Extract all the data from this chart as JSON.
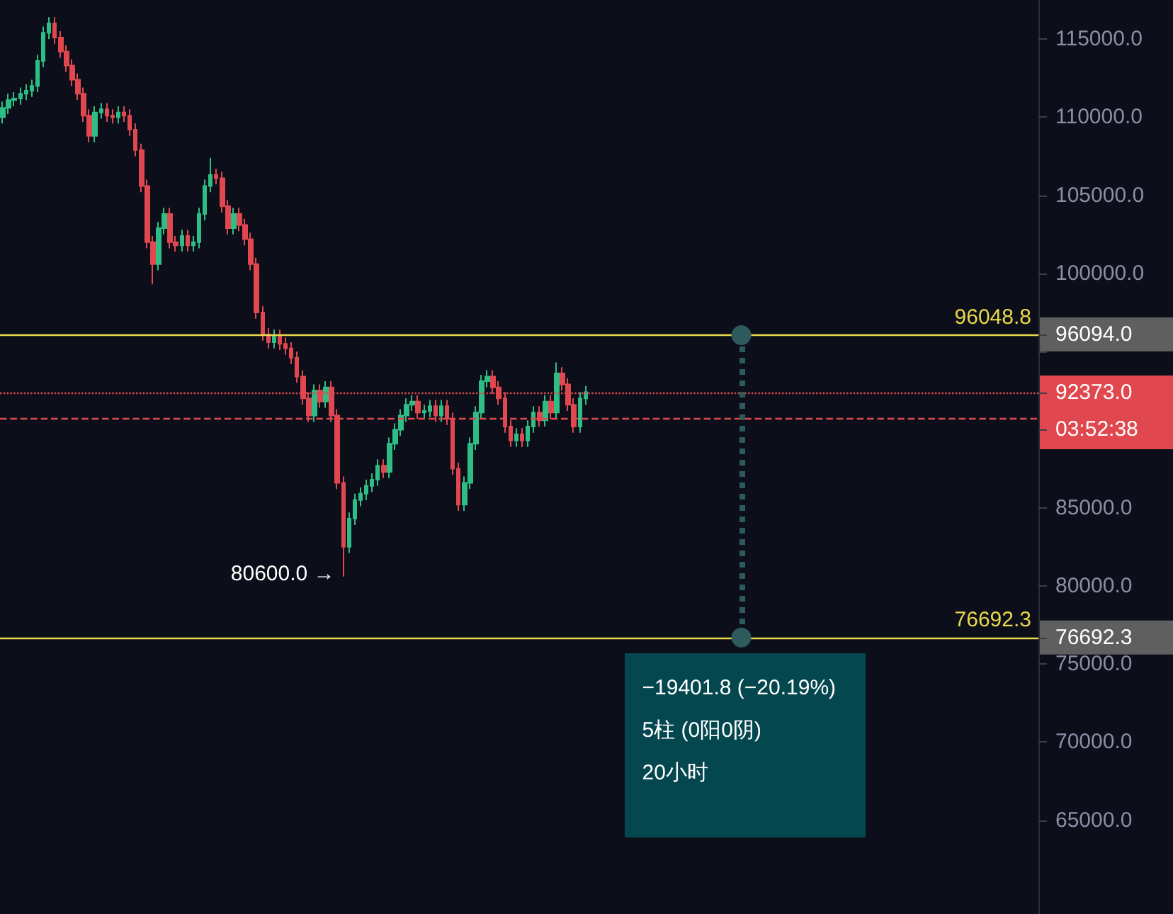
{
  "chart_data": {
    "type": "candlestick",
    "categories": [
      null,
      null,
      null,
      null,
      null,
      null,
      null,
      null,
      null,
      null,
      null,
      null,
      null,
      null,
      null,
      null,
      null,
      null,
      null,
      null,
      null,
      null,
      null,
      null,
      null,
      null,
      null,
      null,
      null,
      null,
      null,
      null,
      null,
      null,
      null,
      null,
      null,
      null,
      null,
      null,
      null,
      null,
      null,
      null,
      null,
      null,
      null,
      null,
      null,
      null,
      null,
      null,
      null,
      null,
      null,
      null,
      null,
      null,
      null,
      null,
      null,
      null,
      null,
      null,
      null,
      null,
      null,
      null,
      null,
      null,
      null,
      null,
      null,
      null,
      null,
      null,
      null,
      null,
      null,
      null,
      null,
      null,
      null,
      null,
      null,
      null,
      null,
      null,
      null,
      null,
      null,
      null,
      null,
      null,
      null,
      null,
      null,
      null,
      null,
      null,
      null,
      null,
      null,
      null,
      null,
      null,
      null,
      null,
      null,
      null,
      null,
      null,
      null,
      null,
      null,
      null,
      null,
      null,
      null,
      null,
      null,
      null,
      null,
      null,
      null,
      null,
      null,
      null,
      null,
      null,
      null,
      null,
      null,
      null,
      null,
      null,
      null,
      null,
      null,
      null,
      null,
      null,
      null,
      null,
      null,
      null,
      null,
      null,
      null,
      null,
      null,
      null,
      null,
      null,
      null,
      null,
      null,
      null,
      null,
      null,
      null,
      null,
      null,
      null,
      null,
      null,
      null,
      null,
      null,
      null,
      null,
      null,
      null,
      null,
      null,
      null,
      null,
      null,
      null,
      null
    ],
    "ohlc": [
      [
        110000,
        111000,
        109600,
        110600
      ],
      [
        110600,
        111500,
        110200,
        111100
      ],
      [
        111100,
        111600,
        110700,
        111200
      ],
      [
        111200,
        111900,
        110800,
        111500
      ],
      [
        111500,
        112100,
        111100,
        111700
      ],
      [
        111700,
        112400,
        111300,
        112000
      ],
      [
        112000,
        114000,
        111600,
        113600
      ],
      [
        113600,
        115800,
        113200,
        115400
      ],
      [
        115400,
        116400,
        115000,
        116000
      ],
      [
        116000,
        116400,
        114700,
        115100
      ],
      [
        115100,
        115500,
        113800,
        114200
      ],
      [
        114200,
        114600,
        112900,
        113300
      ],
      [
        113300,
        113700,
        112000,
        112400
      ],
      [
        112400,
        112800,
        111100,
        111500
      ],
      [
        111500,
        111900,
        109700,
        110100
      ],
      [
        110100,
        110500,
        108400,
        108800
      ],
      [
        108800,
        110700,
        108400,
        110300
      ],
      [
        110300,
        110900,
        109900,
        110500
      ],
      [
        110500,
        110900,
        109700,
        110100
      ],
      [
        110100,
        110500,
        109600,
        110000
      ],
      [
        110000,
        110700,
        109600,
        110300
      ],
      [
        110300,
        110700,
        109700,
        110100
      ],
      [
        110100,
        110500,
        108800,
        109200
      ],
      [
        109200,
        109600,
        107500,
        107900
      ],
      [
        107900,
        108300,
        105200,
        105600
      ],
      [
        105600,
        106000,
        101600,
        102000
      ],
      [
        102000,
        102400,
        99300,
        100600
      ],
      [
        100600,
        103300,
        100200,
        102900
      ],
      [
        102900,
        104200,
        102500,
        103800
      ],
      [
        103800,
        104200,
        101600,
        102000
      ],
      [
        102000,
        102400,
        101400,
        101800
      ],
      [
        101800,
        102800,
        101400,
        102400
      ],
      [
        102400,
        102800,
        101400,
        101800
      ],
      [
        101800,
        102400,
        101400,
        102000
      ],
      [
        102000,
        104200,
        101600,
        103800
      ],
      [
        103800,
        106000,
        103400,
        105600
      ],
      [
        105600,
        107400,
        105200,
        106300
      ],
      [
        106300,
        106700,
        105700,
        106100
      ],
      [
        106100,
        106500,
        103900,
        104300
      ],
      [
        104300,
        104700,
        102500,
        102900
      ],
      [
        102900,
        104200,
        102500,
        103800
      ],
      [
        103800,
        104200,
        102700,
        103100
      ],
      [
        103100,
        103500,
        101800,
        102200
      ],
      [
        102200,
        102600,
        100200,
        100600
      ],
      [
        100600,
        101000,
        97100,
        97500
      ],
      [
        97500,
        97900,
        95700,
        96100
      ],
      [
        96100,
        96500,
        95200,
        95600
      ],
      [
        95600,
        96400,
        95200,
        96000
      ],
      [
        96000,
        96400,
        95100,
        95500
      ],
      [
        95500,
        95900,
        94800,
        95200
      ],
      [
        95200,
        95600,
        94200,
        94600
      ],
      [
        94600,
        95000,
        93000,
        93400
      ],
      [
        93400,
        93800,
        91600,
        92000
      ],
      [
        92000,
        92400,
        90500,
        90900
      ],
      [
        90900,
        92900,
        90500,
        92500
      ],
      [
        92500,
        92900,
        91400,
        91800
      ],
      [
        91800,
        93100,
        91400,
        92700
      ],
      [
        92700,
        93100,
        90500,
        90900
      ],
      [
        90900,
        91300,
        86200,
        86600
      ],
      [
        86600,
        87000,
        80600,
        82500
      ],
      [
        82500,
        84700,
        82100,
        84300
      ],
      [
        84300,
        85900,
        83900,
        85500
      ],
      [
        85500,
        86300,
        85100,
        85900
      ],
      [
        85900,
        86800,
        85500,
        86400
      ],
      [
        86400,
        87200,
        86000,
        86800
      ],
      [
        86800,
        88100,
        86400,
        87700
      ],
      [
        87700,
        88100,
        86900,
        87300
      ],
      [
        87300,
        89500,
        86900,
        89100
      ],
      [
        89100,
        90400,
        88700,
        90000
      ],
      [
        90000,
        91300,
        89600,
        90900
      ],
      [
        90900,
        92000,
        90500,
        91600
      ],
      [
        91600,
        92200,
        91200,
        91800
      ],
      [
        91800,
        92200,
        90700,
        91100
      ],
      [
        91100,
        91600,
        90700,
        91200
      ],
      [
        91200,
        91900,
        90800,
        91500
      ],
      [
        91500,
        91900,
        90500,
        90900
      ],
      [
        90900,
        91900,
        90500,
        91500
      ],
      [
        91500,
        91900,
        90300,
        90700
      ],
      [
        90700,
        91100,
        87100,
        87500
      ],
      [
        87500,
        87900,
        84800,
        85200
      ],
      [
        85200,
        87000,
        84800,
        86600
      ],
      [
        86600,
        89500,
        86200,
        89100
      ],
      [
        89100,
        91500,
        88700,
        91100
      ],
      [
        91100,
        93500,
        90700,
        93100
      ],
      [
        93100,
        93800,
        92700,
        93400
      ],
      [
        93400,
        93800,
        92300,
        92700
      ],
      [
        92700,
        93100,
        91600,
        92000
      ],
      [
        92000,
        92400,
        89800,
        90200
      ],
      [
        90200,
        90600,
        88900,
        89300
      ],
      [
        89300,
        90100,
        88900,
        89700
      ],
      [
        89700,
        90100,
        88900,
        89300
      ],
      [
        89300,
        90600,
        88900,
        90200
      ],
      [
        90200,
        91500,
        89800,
        91100
      ],
      [
        91100,
        91500,
        90200,
        90600
      ],
      [
        90600,
        92200,
        90200,
        91800
      ],
      [
        91800,
        92200,
        90700,
        91100
      ],
      [
        91100,
        94300,
        90700,
        93600
      ],
      [
        93600,
        94000,
        92500,
        92900
      ],
      [
        92900,
        93300,
        91200,
        91600
      ],
      [
        91600,
        92000,
        89800,
        90200
      ],
      [
        90200,
        92400,
        89800,
        92000
      ],
      [
        92000,
        92800,
        91600,
        92400
      ],
      null,
      null,
      null,
      null,
      null,
      null,
      null,
      null,
      null,
      null,
      null,
      null,
      null,
      null,
      null,
      null,
      null,
      null,
      null,
      null,
      null,
      null,
      null,
      null,
      null,
      null,
      null,
      null,
      null,
      null,
      null,
      null,
      null,
      null,
      null,
      null,
      null,
      null,
      null,
      null,
      null,
      null,
      null,
      null,
      null,
      null,
      null,
      null,
      null,
      null,
      null,
      null,
      null,
      null,
      null,
      null,
      null,
      null,
      null,
      null,
      null,
      null,
      null,
      null,
      null,
      null,
      null,
      null,
      null,
      null,
      null,
      null,
      null,
      null,
      null,
      null,
      null,
      null
    ],
    "ylim": [
      59000,
      117500
    ],
    "yticks": [
      {
        "value": 65000,
        "label": "65000.0"
      },
      {
        "value": 70000,
        "label": "70000.0"
      },
      {
        "value": 75000,
        "label": "75000.0"
      },
      {
        "value": 76692.3,
        "label": "76692.3"
      },
      {
        "value": 80000,
        "label": "80000.0"
      },
      {
        "value": 85000,
        "label": "85000.0"
      },
      {
        "value": 90000,
        "label": null
      },
      {
        "value": 92373,
        "label": "92373.0"
      },
      {
        "value": 95000,
        "label": null
      },
      {
        "value": 96094,
        "label": "96094.0"
      },
      {
        "value": 100000,
        "label": "100000.0"
      },
      {
        "value": 105000,
        "label": "105000.0"
      },
      {
        "value": 110000,
        "label": "110000.0"
      },
      {
        "value": 115000,
        "label": "115000.0"
      }
    ],
    "tick_labels": "y",
    "grid": false,
    "ref_lines": [
      {
        "axis": "y",
        "value": 96048.8,
        "label": "96048.8",
        "color": "#e8d84a",
        "line_style": "solid"
      },
      {
        "axis": "y",
        "value": 76692.3,
        "label": "76692.3",
        "color": "#e8d84a",
        "line_style": "solid"
      },
      {
        "axis": "y",
        "value": 92373,
        "color": "#e0474f",
        "line_style": "dotted"
      },
      {
        "axis": "y",
        "value": 90700,
        "color": "#e0474f",
        "line_style": "dashed"
      }
    ],
    "annotations": [
      "03:52:38",
      "80600.0 →",
      "−19401.8 (−20.19%)",
      "5柱 (0阳0阴)",
      "20小时"
    ]
  }
}
